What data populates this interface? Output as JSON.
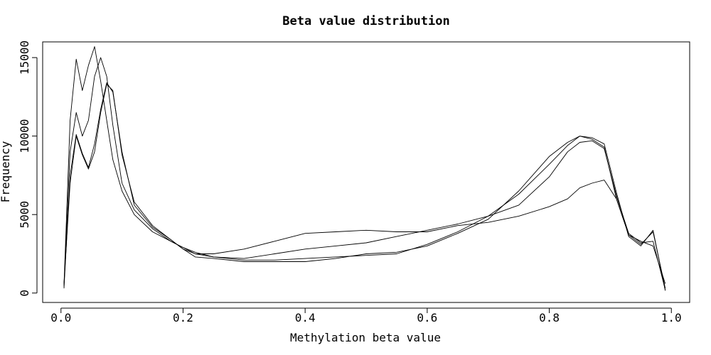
{
  "chart_data": {
    "type": "line",
    "title": "Beta value distribution",
    "xlabel": "Methylation beta value",
    "ylabel": "Frequency",
    "xlim": [
      -0.03,
      1.03
    ],
    "ylim": [
      -600,
      16000
    ],
    "x_ticks": [
      0.0,
      0.2,
      0.4,
      0.6,
      0.8,
      1.0
    ],
    "x_tick_labels": [
      "0.0",
      "0.2",
      "0.4",
      "0.6",
      "0.8",
      "1.0"
    ],
    "y_ticks": [
      0,
      5000,
      10000,
      15000
    ],
    "y_tick_labels": [
      "0",
      "5000",
      "10000",
      "15000"
    ],
    "grid": false,
    "legend": "none",
    "line_color": "#000000",
    "series": [
      {
        "x": [
          0.005,
          0.015,
          0.025,
          0.035,
          0.045,
          0.055,
          0.065,
          0.075,
          0.085,
          0.1,
          0.12,
          0.15,
          0.18,
          0.2,
          0.22,
          0.25,
          0.3,
          0.35,
          0.4,
          0.45,
          0.5,
          0.55,
          0.6,
          0.65,
          0.7,
          0.75,
          0.8,
          0.83,
          0.85,
          0.87,
          0.89,
          0.91,
          0.93,
          0.95,
          0.97,
          0.99
        ],
        "values": [
          500,
          11000,
          14900,
          12900,
          14500,
          15700,
          13500,
          11000,
          8500,
          6500,
          5000,
          3900,
          3300,
          2900,
          2600,
          2300,
          2200,
          2500,
          2800,
          3000,
          3200,
          3600,
          4000,
          4400,
          4900,
          5600,
          7400,
          9000,
          9600,
          9700,
          9200,
          6200,
          3800,
          3200,
          3300,
          200
        ]
      },
      {
        "x": [
          0.005,
          0.015,
          0.025,
          0.035,
          0.045,
          0.055,
          0.065,
          0.075,
          0.085,
          0.1,
          0.12,
          0.15,
          0.18,
          0.2,
          0.22,
          0.25,
          0.3,
          0.35,
          0.4,
          0.45,
          0.5,
          0.55,
          0.6,
          0.65,
          0.7,
          0.75,
          0.8,
          0.83,
          0.85,
          0.87,
          0.89,
          0.91,
          0.93,
          0.95,
          0.97,
          0.99
        ],
        "values": [
          400,
          9000,
          11500,
          10000,
          11000,
          13800,
          15000,
          13800,
          10700,
          7000,
          5300,
          4100,
          3300,
          2900,
          2500,
          2300,
          2100,
          2100,
          2200,
          2300,
          2400,
          2500,
          3100,
          3900,
          4900,
          6300,
          8200,
          9400,
          10000,
          9800,
          9300,
          6000,
          3700,
          3300,
          3000,
          600
        ]
      },
      {
        "x": [
          0.005,
          0.015,
          0.025,
          0.035,
          0.045,
          0.055,
          0.065,
          0.075,
          0.085,
          0.1,
          0.12,
          0.15,
          0.18,
          0.2,
          0.22,
          0.25,
          0.3,
          0.35,
          0.4,
          0.45,
          0.5,
          0.55,
          0.6,
          0.65,
          0.7,
          0.75,
          0.8,
          0.83,
          0.85,
          0.87,
          0.89,
          0.91,
          0.93,
          0.95,
          0.97,
          0.99
        ],
        "values": [
          300,
          7500,
          10100,
          8900,
          8000,
          9500,
          11700,
          13400,
          12800,
          9000,
          5600,
          4200,
          3400,
          2800,
          2300,
          2200,
          2000,
          2000,
          2000,
          2200,
          2500,
          2600,
          3000,
          3800,
          4700,
          6500,
          8700,
          9600,
          10000,
          9900,
          9500,
          6400,
          3600,
          3000,
          4000,
          150
        ]
      },
      {
        "x": [
          0.005,
          0.015,
          0.025,
          0.035,
          0.045,
          0.055,
          0.065,
          0.075,
          0.085,
          0.1,
          0.12,
          0.15,
          0.18,
          0.2,
          0.22,
          0.25,
          0.3,
          0.35,
          0.4,
          0.45,
          0.5,
          0.55,
          0.6,
          0.65,
          0.7,
          0.75,
          0.8,
          0.83,
          0.85,
          0.87,
          0.89,
          0.91,
          0.93,
          0.95,
          0.97,
          0.99
        ],
        "values": [
          600,
          7000,
          10000,
          8800,
          7900,
          9000,
          11500,
          13300,
          12900,
          8800,
          5800,
          4300,
          3400,
          2800,
          2500,
          2500,
          2800,
          3300,
          3800,
          3900,
          4000,
          3900,
          3900,
          4300,
          4500,
          4900,
          5500,
          6000,
          6700,
          7000,
          7200,
          6000,
          3700,
          3100,
          3900,
          300
        ]
      }
    ]
  }
}
